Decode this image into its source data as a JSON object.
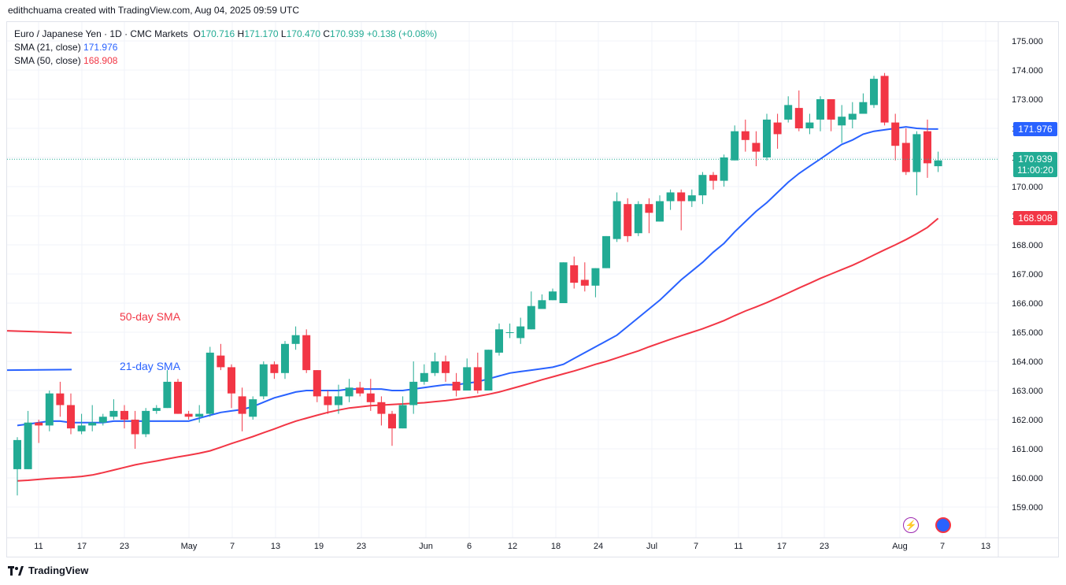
{
  "header": {
    "attribution": "edithchuama created with TradingView.com, Aug 04, 2025 09:59 UTC"
  },
  "legend": {
    "symbol": "Euro / Japanese Yen · 1D · CMC Markets",
    "o_label": "O",
    "o_value": "170.716",
    "h_label": "H",
    "h_value": "171.170",
    "l_label": "L",
    "l_value": "170.470",
    "c_label": "C",
    "c_value": "170.939",
    "change": "+0.138 (+0.08%)",
    "sma21_label": "SMA (21, close)",
    "sma21_value": "171.976",
    "sma50_label": "SMA (50, close)",
    "sma50_value": "168.908"
  },
  "tags": {
    "sma21": "171.976",
    "last_price": "170.939",
    "countdown": "11:00:20",
    "sma50": "168.908"
  },
  "footer": {
    "brand": "TradingView"
  },
  "colors": {
    "up": "#22ab94",
    "down": "#f23645",
    "sma21": "#2962ff",
    "sma50": "#f23645",
    "grid": "#f0f3fa"
  },
  "chart_data": {
    "type": "candlestick",
    "title": "Euro / Japanese Yen · 1D · CMC Markets",
    "ylim": [
      158.3,
      175.5
    ],
    "y_ticks": [
      "159.000",
      "160.000",
      "161.000",
      "162.000",
      "163.000",
      "164.000",
      "165.000",
      "166.000",
      "167.000",
      "168.000",
      "169.000",
      "170.000",
      "171.000",
      "172.000",
      "173.000",
      "174.000",
      "175.000"
    ],
    "x_ticks": [
      "11",
      "17",
      "23",
      "May",
      "7",
      "13",
      "19",
      "23",
      "Jun",
      "6",
      "12",
      "18",
      "24",
      "Jul",
      "7",
      "11",
      "17",
      "23",
      "Aug",
      "7",
      "13"
    ],
    "annotations": [
      "50-day SMA",
      "21-day SMA"
    ],
    "candles": [
      [
        160.3,
        161.3,
        159.4,
        161.4
      ],
      [
        160.3,
        161.9,
        160.3,
        162.3
      ],
      [
        161.9,
        161.8,
        161.2,
        162.0
      ],
      [
        161.8,
        162.9,
        161.6,
        163.0
      ],
      [
        162.9,
        162.5,
        162.1,
        163.3
      ],
      [
        162.5,
        161.7,
        161.5,
        162.9
      ],
      [
        161.6,
        161.8,
        161.5,
        162.2
      ],
      [
        161.8,
        161.9,
        161.6,
        162.5
      ],
      [
        161.9,
        162.1,
        161.8,
        162.2
      ],
      [
        162.1,
        162.3,
        162.0,
        162.7
      ],
      [
        162.3,
        162.0,
        161.7,
        162.5
      ],
      [
        162.0,
        161.5,
        161.0,
        162.3
      ],
      [
        161.5,
        162.3,
        161.4,
        162.4
      ],
      [
        162.3,
        162.4,
        162.2,
        162.5
      ],
      [
        162.4,
        163.3,
        162.4,
        163.7
      ],
      [
        163.3,
        162.2,
        162.2,
        163.4
      ],
      [
        162.2,
        162.1,
        162.0,
        162.3
      ],
      [
        162.1,
        162.2,
        161.9,
        162.5
      ],
      [
        162.2,
        164.3,
        162.1,
        164.5
      ],
      [
        164.2,
        163.8,
        163.7,
        164.6
      ],
      [
        163.8,
        162.9,
        162.4,
        163.9
      ],
      [
        162.8,
        162.2,
        161.6,
        163.1
      ],
      [
        162.1,
        162.7,
        162.0,
        162.8
      ],
      [
        162.8,
        163.9,
        162.7,
        164.0
      ],
      [
        163.9,
        163.6,
        163.4,
        164.0
      ],
      [
        163.6,
        164.6,
        163.4,
        164.7
      ],
      [
        164.6,
        164.9,
        164.4,
        165.2
      ],
      [
        164.9,
        163.7,
        163.6,
        165.1
      ],
      [
        163.7,
        162.8,
        162.6,
        163.7
      ],
      [
        162.8,
        162.5,
        162.2,
        163.0
      ],
      [
        162.5,
        162.8,
        162.2,
        163.2
      ],
      [
        162.8,
        163.1,
        162.6,
        163.4
      ],
      [
        163.1,
        162.9,
        162.8,
        163.3
      ],
      [
        162.9,
        162.6,
        162.3,
        163.4
      ],
      [
        162.6,
        162.2,
        161.8,
        162.8
      ],
      [
        162.2,
        161.7,
        161.1,
        162.3
      ],
      [
        161.7,
        162.5,
        161.7,
        162.8
      ],
      [
        162.5,
        163.3,
        162.2,
        164.0
      ],
      [
        163.3,
        163.6,
        163.2,
        163.9
      ],
      [
        163.6,
        164.0,
        163.5,
        164.3
      ],
      [
        164.0,
        163.6,
        163.3,
        164.2
      ],
      [
        163.3,
        163.0,
        162.8,
        163.6
      ],
      [
        163.0,
        163.8,
        163.0,
        164.1
      ],
      [
        163.8,
        163.0,
        162.9,
        164.3
      ],
      [
        163.0,
        164.4,
        163.0,
        164.4
      ],
      [
        164.3,
        165.1,
        164.2,
        165.3
      ],
      [
        165.0,
        165.0,
        164.8,
        165.3
      ],
      [
        164.8,
        165.2,
        164.6,
        165.5
      ],
      [
        165.1,
        165.9,
        165.1,
        166.4
      ],
      [
        165.8,
        166.1,
        165.9,
        166.3
      ],
      [
        166.1,
        166.4,
        166.1,
        166.5
      ],
      [
        166.0,
        167.4,
        166.1,
        167.4
      ],
      [
        167.3,
        166.7,
        166.5,
        167.6
      ],
      [
        166.8,
        166.6,
        166.4,
        167.4
      ],
      [
        166.6,
        167.2,
        166.2,
        167.2
      ],
      [
        167.2,
        168.3,
        167.2,
        168.3
      ],
      [
        168.2,
        169.5,
        168.1,
        169.8
      ],
      [
        169.4,
        168.3,
        168.1,
        169.6
      ],
      [
        168.4,
        169.4,
        168.3,
        169.5
      ],
      [
        169.4,
        169.1,
        168.4,
        169.6
      ],
      [
        168.8,
        169.5,
        168.8,
        169.7
      ],
      [
        169.5,
        169.8,
        169.2,
        169.9
      ],
      [
        169.8,
        169.5,
        168.5,
        169.9
      ],
      [
        169.5,
        169.7,
        169.3,
        169.9
      ],
      [
        169.7,
        170.4,
        169.4,
        170.5
      ],
      [
        170.4,
        170.2,
        169.9,
        170.5
      ],
      [
        170.2,
        171.0,
        170.0,
        171.1
      ],
      [
        170.9,
        171.9,
        170.9,
        172.1
      ],
      [
        171.9,
        171.6,
        171.2,
        172.3
      ],
      [
        171.5,
        171.2,
        170.7,
        171.9
      ],
      [
        171.0,
        172.3,
        170.9,
        172.5
      ],
      [
        172.2,
        171.8,
        171.3,
        172.5
      ],
      [
        172.3,
        172.8,
        172.2,
        173.1
      ],
      [
        172.7,
        172.0,
        171.9,
        173.3
      ],
      [
        172.0,
        172.2,
        171.8,
        172.5
      ],
      [
        172.3,
        173.0,
        171.9,
        173.1
      ],
      [
        173.0,
        172.3,
        171.9,
        172.9
      ],
      [
        172.1,
        172.4,
        171.5,
        172.8
      ],
      [
        172.3,
        172.5,
        172.0,
        172.9
      ],
      [
        172.5,
        172.9,
        172.6,
        173.2
      ],
      [
        172.8,
        173.7,
        172.7,
        173.8
      ],
      [
        173.8,
        172.2,
        172.1,
        173.9
      ],
      [
        172.2,
        171.4,
        170.9,
        172.5
      ],
      [
        171.5,
        170.5,
        170.4,
        172.0
      ],
      [
        170.5,
        171.8,
        169.7,
        171.9
      ],
      [
        171.9,
        170.8,
        170.3,
        172.3
      ],
      [
        170.7,
        170.9,
        170.5,
        171.2
      ]
    ],
    "series": [
      {
        "name": "21-day SMA",
        "values": [
          161.8,
          161.85,
          161.9,
          161.95,
          161.95,
          161.9,
          161.9,
          161.9,
          161.9,
          161.95,
          161.95,
          161.95,
          161.95,
          161.95,
          161.95,
          161.95,
          161.95,
          162.05,
          162.15,
          162.25,
          162.3,
          162.35,
          162.45,
          162.6,
          162.75,
          162.85,
          162.95,
          163.0,
          163.0,
          163.0,
          163.0,
          163.05,
          163.05,
          163.05,
          163.05,
          163.0,
          163.0,
          163.05,
          163.1,
          163.15,
          163.2,
          163.2,
          163.25,
          163.3,
          163.4,
          163.5,
          163.6,
          163.65,
          163.7,
          163.75,
          163.8,
          163.9,
          164.1,
          164.3,
          164.5,
          164.7,
          164.9,
          165.2,
          165.5,
          165.8,
          166.1,
          166.45,
          166.8,
          167.1,
          167.4,
          167.75,
          168.05,
          168.45,
          168.8,
          169.15,
          169.45,
          169.8,
          170.15,
          170.45,
          170.7,
          170.95,
          171.2,
          171.45,
          171.6,
          171.8,
          171.9,
          171.95,
          172.0,
          172.05,
          172.0,
          171.98,
          171.976
        ]
      },
      {
        "name": "50-day SMA",
        "values": [
          159.9,
          159.92,
          159.95,
          159.98,
          160.0,
          160.02,
          160.05,
          160.1,
          160.18,
          160.27,
          160.36,
          160.45,
          160.52,
          160.58,
          160.65,
          160.72,
          160.78,
          160.85,
          160.93,
          161.05,
          161.18,
          161.3,
          161.42,
          161.55,
          161.68,
          161.82,
          161.95,
          162.05,
          162.15,
          162.25,
          162.33,
          162.4,
          162.44,
          162.48,
          162.5,
          162.52,
          162.54,
          162.56,
          162.58,
          162.62,
          162.65,
          162.7,
          162.75,
          162.8,
          162.87,
          162.95,
          163.05,
          163.15,
          163.26,
          163.37,
          163.47,
          163.57,
          163.67,
          163.78,
          163.9,
          164.0,
          164.12,
          164.24,
          164.36,
          164.5,
          164.63,
          164.76,
          164.88,
          165.0,
          165.12,
          165.26,
          165.4,
          165.57,
          165.73,
          165.87,
          166.02,
          166.18,
          166.35,
          166.52,
          166.68,
          166.85,
          167.0,
          167.15,
          167.3,
          167.47,
          167.65,
          167.83,
          168.0,
          168.18,
          168.38,
          168.6,
          168.908
        ]
      }
    ],
    "last_price": 170.939
  }
}
